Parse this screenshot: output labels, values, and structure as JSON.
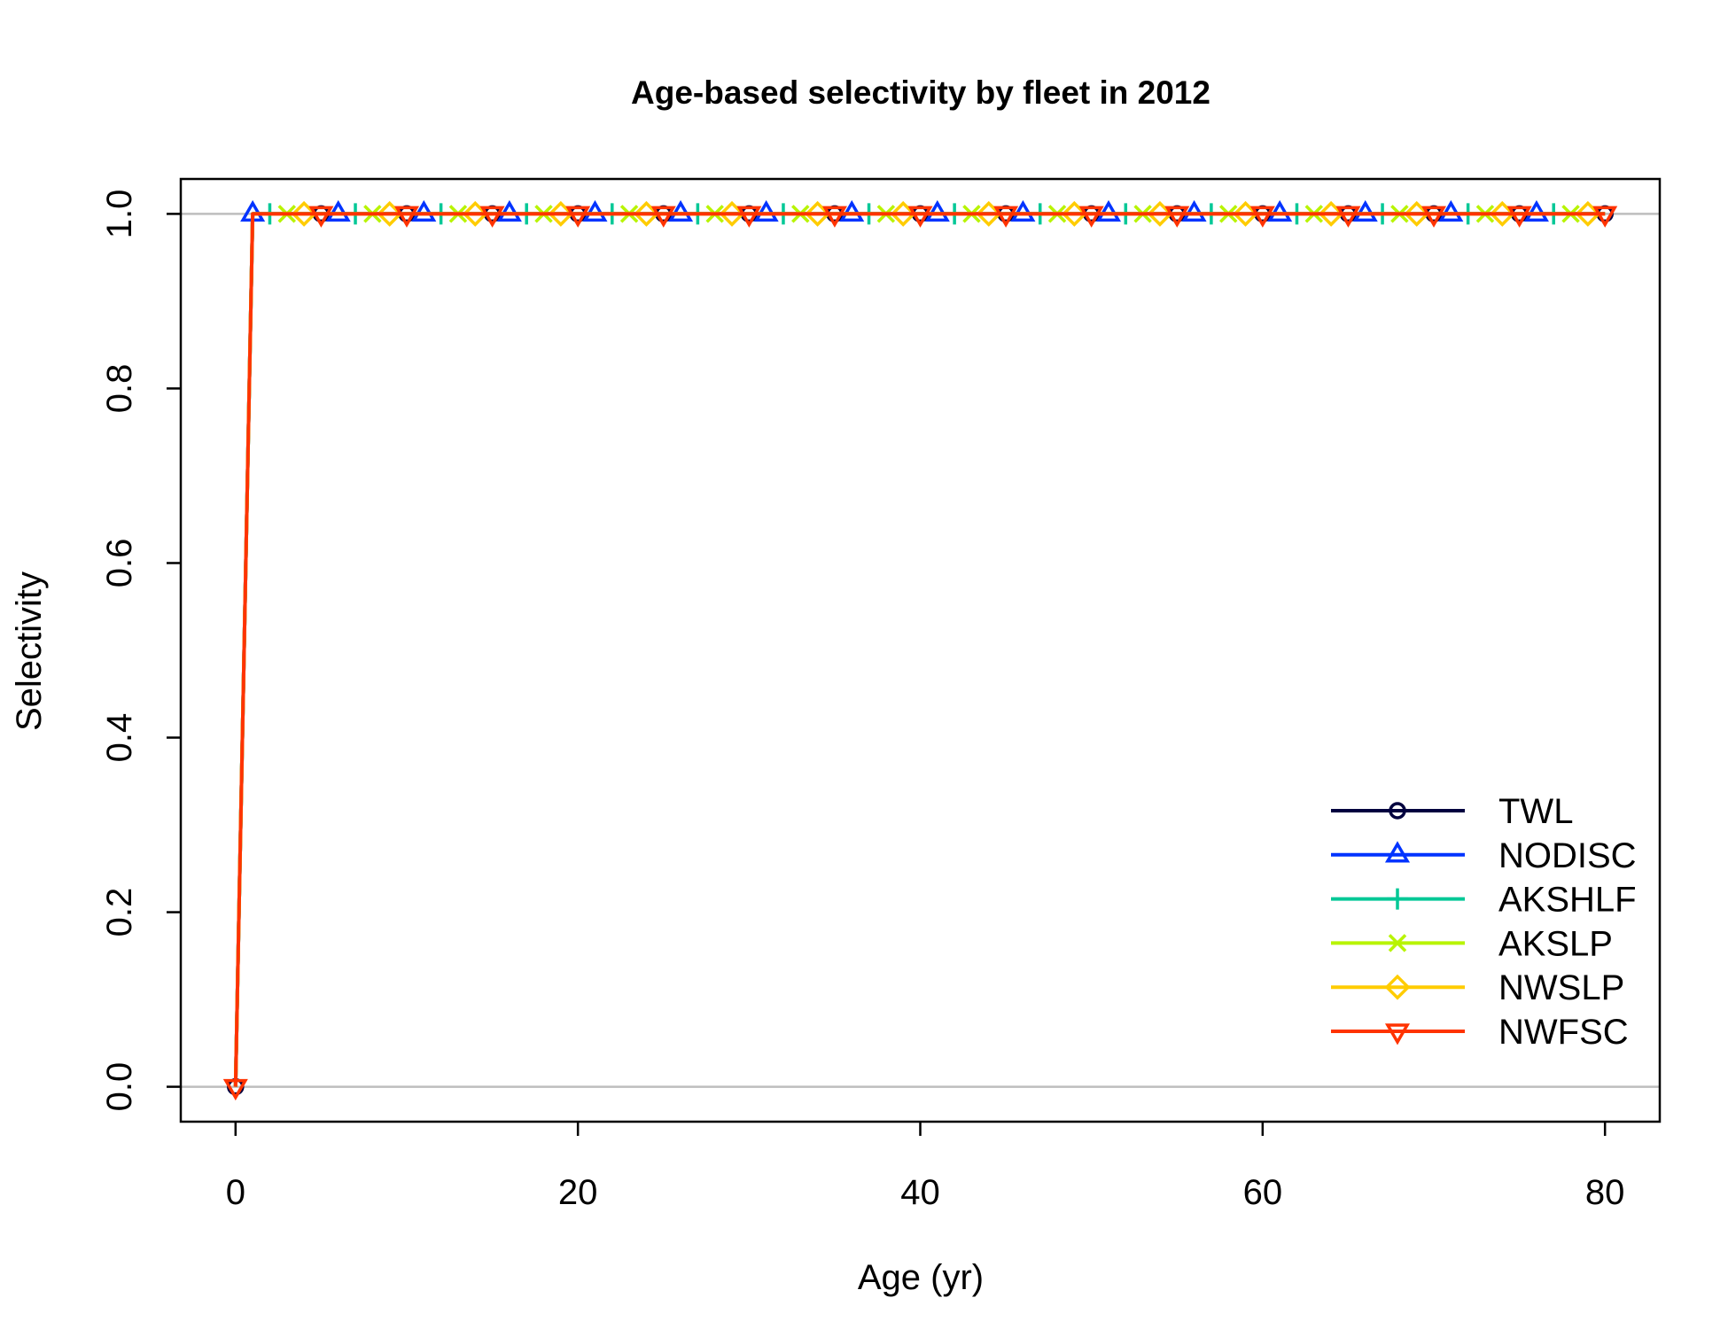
{
  "chart_data": {
    "type": "line",
    "title": "Age-based selectivity by fleet in 2012",
    "xlabel": "Age (yr)",
    "ylabel": "Selectivity",
    "xlim": [
      -3.2,
      83.2
    ],
    "ylim": [
      -0.04,
      1.04
    ],
    "grid": false,
    "hlines": [
      0,
      1
    ],
    "legend_position": "bottom-right",
    "x_ticks": [
      {
        "value": 0,
        "label": "0"
      },
      {
        "value": 20,
        "label": "20"
      },
      {
        "value": 40,
        "label": "40"
      },
      {
        "value": 60,
        "label": "60"
      },
      {
        "value": 80,
        "label": "80"
      }
    ],
    "y_ticks": [
      {
        "value": 0,
        "label": "0.0"
      },
      {
        "value": 0.2,
        "label": "0.2"
      },
      {
        "value": 0.4,
        "label": "0.4"
      },
      {
        "value": 0.6,
        "label": "0.6"
      },
      {
        "value": 0.8,
        "label": "0.8"
      },
      {
        "value": 1,
        "label": "1.0"
      }
    ],
    "x": [
      0,
      1,
      2,
      3,
      4,
      5,
      6,
      7,
      8,
      9,
      10,
      11,
      12,
      13,
      14,
      15,
      16,
      17,
      18,
      19,
      20,
      21,
      22,
      23,
      24,
      25,
      26,
      27,
      28,
      29,
      30,
      31,
      32,
      33,
      34,
      35,
      36,
      37,
      38,
      39,
      40,
      41,
      42,
      43,
      44,
      45,
      46,
      47,
      48,
      49,
      50,
      51,
      52,
      53,
      54,
      55,
      56,
      57,
      58,
      59,
      60,
      61,
      62,
      63,
      64,
      65,
      66,
      67,
      68,
      69,
      70,
      71,
      72,
      73,
      74,
      75,
      76,
      77,
      78,
      79,
      80
    ],
    "series": [
      {
        "name": "TWL",
        "color": "#00003F",
        "marker": "circle-icon",
        "values": [
          0,
          1,
          1,
          1,
          1,
          1,
          1,
          1,
          1,
          1,
          1,
          1,
          1,
          1,
          1,
          1,
          1,
          1,
          1,
          1,
          1,
          1,
          1,
          1,
          1,
          1,
          1,
          1,
          1,
          1,
          1,
          1,
          1,
          1,
          1,
          1,
          1,
          1,
          1,
          1,
          1,
          1,
          1,
          1,
          1,
          1,
          1,
          1,
          1,
          1,
          1,
          1,
          1,
          1,
          1,
          1,
          1,
          1,
          1,
          1,
          1,
          1,
          1,
          1,
          1,
          1,
          1,
          1,
          1,
          1,
          1,
          1,
          1,
          1,
          1,
          1,
          1,
          1,
          1,
          1,
          1
        ]
      },
      {
        "name": "NODISC",
        "color": "#0033FF",
        "marker": "triangle-up-icon",
        "values": [
          0,
          1,
          1,
          1,
          1,
          1,
          1,
          1,
          1,
          1,
          1,
          1,
          1,
          1,
          1,
          1,
          1,
          1,
          1,
          1,
          1,
          1,
          1,
          1,
          1,
          1,
          1,
          1,
          1,
          1,
          1,
          1,
          1,
          1,
          1,
          1,
          1,
          1,
          1,
          1,
          1,
          1,
          1,
          1,
          1,
          1,
          1,
          1,
          1,
          1,
          1,
          1,
          1,
          1,
          1,
          1,
          1,
          1,
          1,
          1,
          1,
          1,
          1,
          1,
          1,
          1,
          1,
          1,
          1,
          1,
          1,
          1,
          1,
          1,
          1,
          1,
          1,
          1,
          1,
          1,
          1
        ]
      },
      {
        "name": "AKSHLF",
        "color": "#00C896",
        "marker": "plus-icon",
        "values": [
          0,
          1,
          1,
          1,
          1,
          1,
          1,
          1,
          1,
          1,
          1,
          1,
          1,
          1,
          1,
          1,
          1,
          1,
          1,
          1,
          1,
          1,
          1,
          1,
          1,
          1,
          1,
          1,
          1,
          1,
          1,
          1,
          1,
          1,
          1,
          1,
          1,
          1,
          1,
          1,
          1,
          1,
          1,
          1,
          1,
          1,
          1,
          1,
          1,
          1,
          1,
          1,
          1,
          1,
          1,
          1,
          1,
          1,
          1,
          1,
          1,
          1,
          1,
          1,
          1,
          1,
          1,
          1,
          1,
          1,
          1,
          1,
          1,
          1,
          1,
          1,
          1,
          1,
          1,
          1,
          1
        ]
      },
      {
        "name": "AKSLP",
        "color": "#B8F400",
        "marker": "x-cross-icon",
        "values": [
          0,
          1,
          1,
          1,
          1,
          1,
          1,
          1,
          1,
          1,
          1,
          1,
          1,
          1,
          1,
          1,
          1,
          1,
          1,
          1,
          1,
          1,
          1,
          1,
          1,
          1,
          1,
          1,
          1,
          1,
          1,
          1,
          1,
          1,
          1,
          1,
          1,
          1,
          1,
          1,
          1,
          1,
          1,
          1,
          1,
          1,
          1,
          1,
          1,
          1,
          1,
          1,
          1,
          1,
          1,
          1,
          1,
          1,
          1,
          1,
          1,
          1,
          1,
          1,
          1,
          1,
          1,
          1,
          1,
          1,
          1,
          1,
          1,
          1,
          1,
          1,
          1,
          1,
          1,
          1,
          1
        ]
      },
      {
        "name": "NWSLP",
        "color": "#FFCC00",
        "marker": "diamond-icon",
        "values": [
          0,
          1,
          1,
          1,
          1,
          1,
          1,
          1,
          1,
          1,
          1,
          1,
          1,
          1,
          1,
          1,
          1,
          1,
          1,
          1,
          1,
          1,
          1,
          1,
          1,
          1,
          1,
          1,
          1,
          1,
          1,
          1,
          1,
          1,
          1,
          1,
          1,
          1,
          1,
          1,
          1,
          1,
          1,
          1,
          1,
          1,
          1,
          1,
          1,
          1,
          1,
          1,
          1,
          1,
          1,
          1,
          1,
          1,
          1,
          1,
          1,
          1,
          1,
          1,
          1,
          1,
          1,
          1,
          1,
          1,
          1,
          1,
          1,
          1,
          1,
          1,
          1,
          1,
          1,
          1,
          1
        ]
      },
      {
        "name": "NWFSC",
        "color": "#FF3300",
        "marker": "triangle-down-icon",
        "values": [
          0,
          1,
          1,
          1,
          1,
          1,
          1,
          1,
          1,
          1,
          1,
          1,
          1,
          1,
          1,
          1,
          1,
          1,
          1,
          1,
          1,
          1,
          1,
          1,
          1,
          1,
          1,
          1,
          1,
          1,
          1,
          1,
          1,
          1,
          1,
          1,
          1,
          1,
          1,
          1,
          1,
          1,
          1,
          1,
          1,
          1,
          1,
          1,
          1,
          1,
          1,
          1,
          1,
          1,
          1,
          1,
          1,
          1,
          1,
          1,
          1,
          1,
          1,
          1,
          1,
          1,
          1,
          1,
          1,
          1,
          1,
          1,
          1,
          1,
          1,
          1,
          1,
          1,
          1,
          1,
          1
        ]
      }
    ]
  }
}
